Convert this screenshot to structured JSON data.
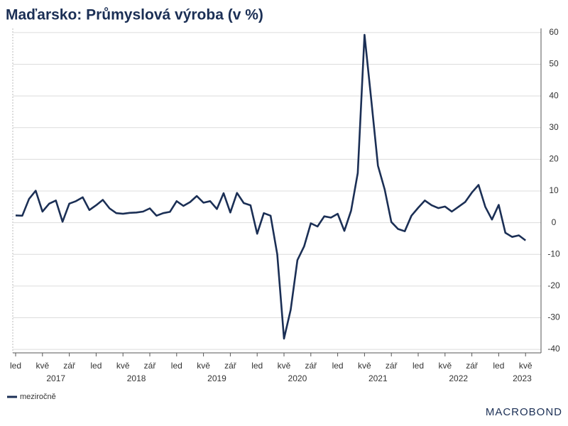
{
  "chart_data": {
    "type": "line",
    "title": "Maďarsko: Průmyslová výroba (v %)",
    "categories": [
      "led",
      null,
      null,
      null,
      "kvě",
      null,
      null,
      null,
      "zář",
      null,
      null,
      null,
      "led",
      null,
      null,
      null,
      "kvě",
      null,
      null,
      null,
      "zář",
      null,
      null,
      null,
      "led",
      null,
      null,
      null,
      "kvě",
      null,
      null,
      null,
      "zář",
      null,
      null,
      null,
      "led",
      null,
      null,
      null,
      "kvě",
      null,
      null,
      null,
      "zář",
      null,
      null,
      null,
      "led",
      null,
      null,
      null,
      "kvě",
      null,
      null,
      null,
      "zář",
      null,
      null,
      null,
      "led",
      null,
      null,
      null,
      "kvě",
      null,
      null,
      null,
      "zář",
      null,
      null,
      null,
      "led",
      null,
      null,
      null,
      "kvě"
    ],
    "years": [
      "2017",
      "2018",
      "2019",
      "2020",
      "2021",
      "2022",
      "2023"
    ],
    "series": [
      {
        "name": "meziročně",
        "color": "#1b2f55",
        "values": [
          2.3,
          2.2,
          7.5,
          10.1,
          3.5,
          6,
          7,
          0.3,
          6,
          6.8,
          8,
          4,
          5.5,
          7.2,
          4.5,
          3,
          2.8,
          3.1,
          3.2,
          3.5,
          4.5,
          2.2,
          3,
          3.4,
          6.8,
          5.3,
          6.5,
          8.4,
          6.3,
          6.8,
          4.3,
          9.3,
          3.2,
          9.4,
          6.2,
          5.5,
          -3.5,
          3,
          2.2,
          -10,
          -36.6,
          -27.5,
          -11.8,
          -7.5,
          -0.2,
          -1.2,
          2,
          1.6,
          2.8,
          -2.6,
          3.8,
          15.7,
          59.3,
          39,
          18,
          10.5,
          0.2,
          -2,
          -2.7,
          2.2,
          4.7,
          7,
          5.5,
          4.6,
          5.1,
          3.5,
          5,
          6.5,
          9.5,
          11.9,
          5,
          1,
          5.6,
          -3.2,
          -4.5,
          -4,
          -5.6
        ]
      }
    ],
    "ylim": [
      -42,
      62
    ],
    "yticks": [
      -40,
      -30,
      -20,
      -10,
      0,
      10,
      20,
      30,
      40,
      50,
      60
    ],
    "grid": true,
    "source": "MACROBOND"
  }
}
